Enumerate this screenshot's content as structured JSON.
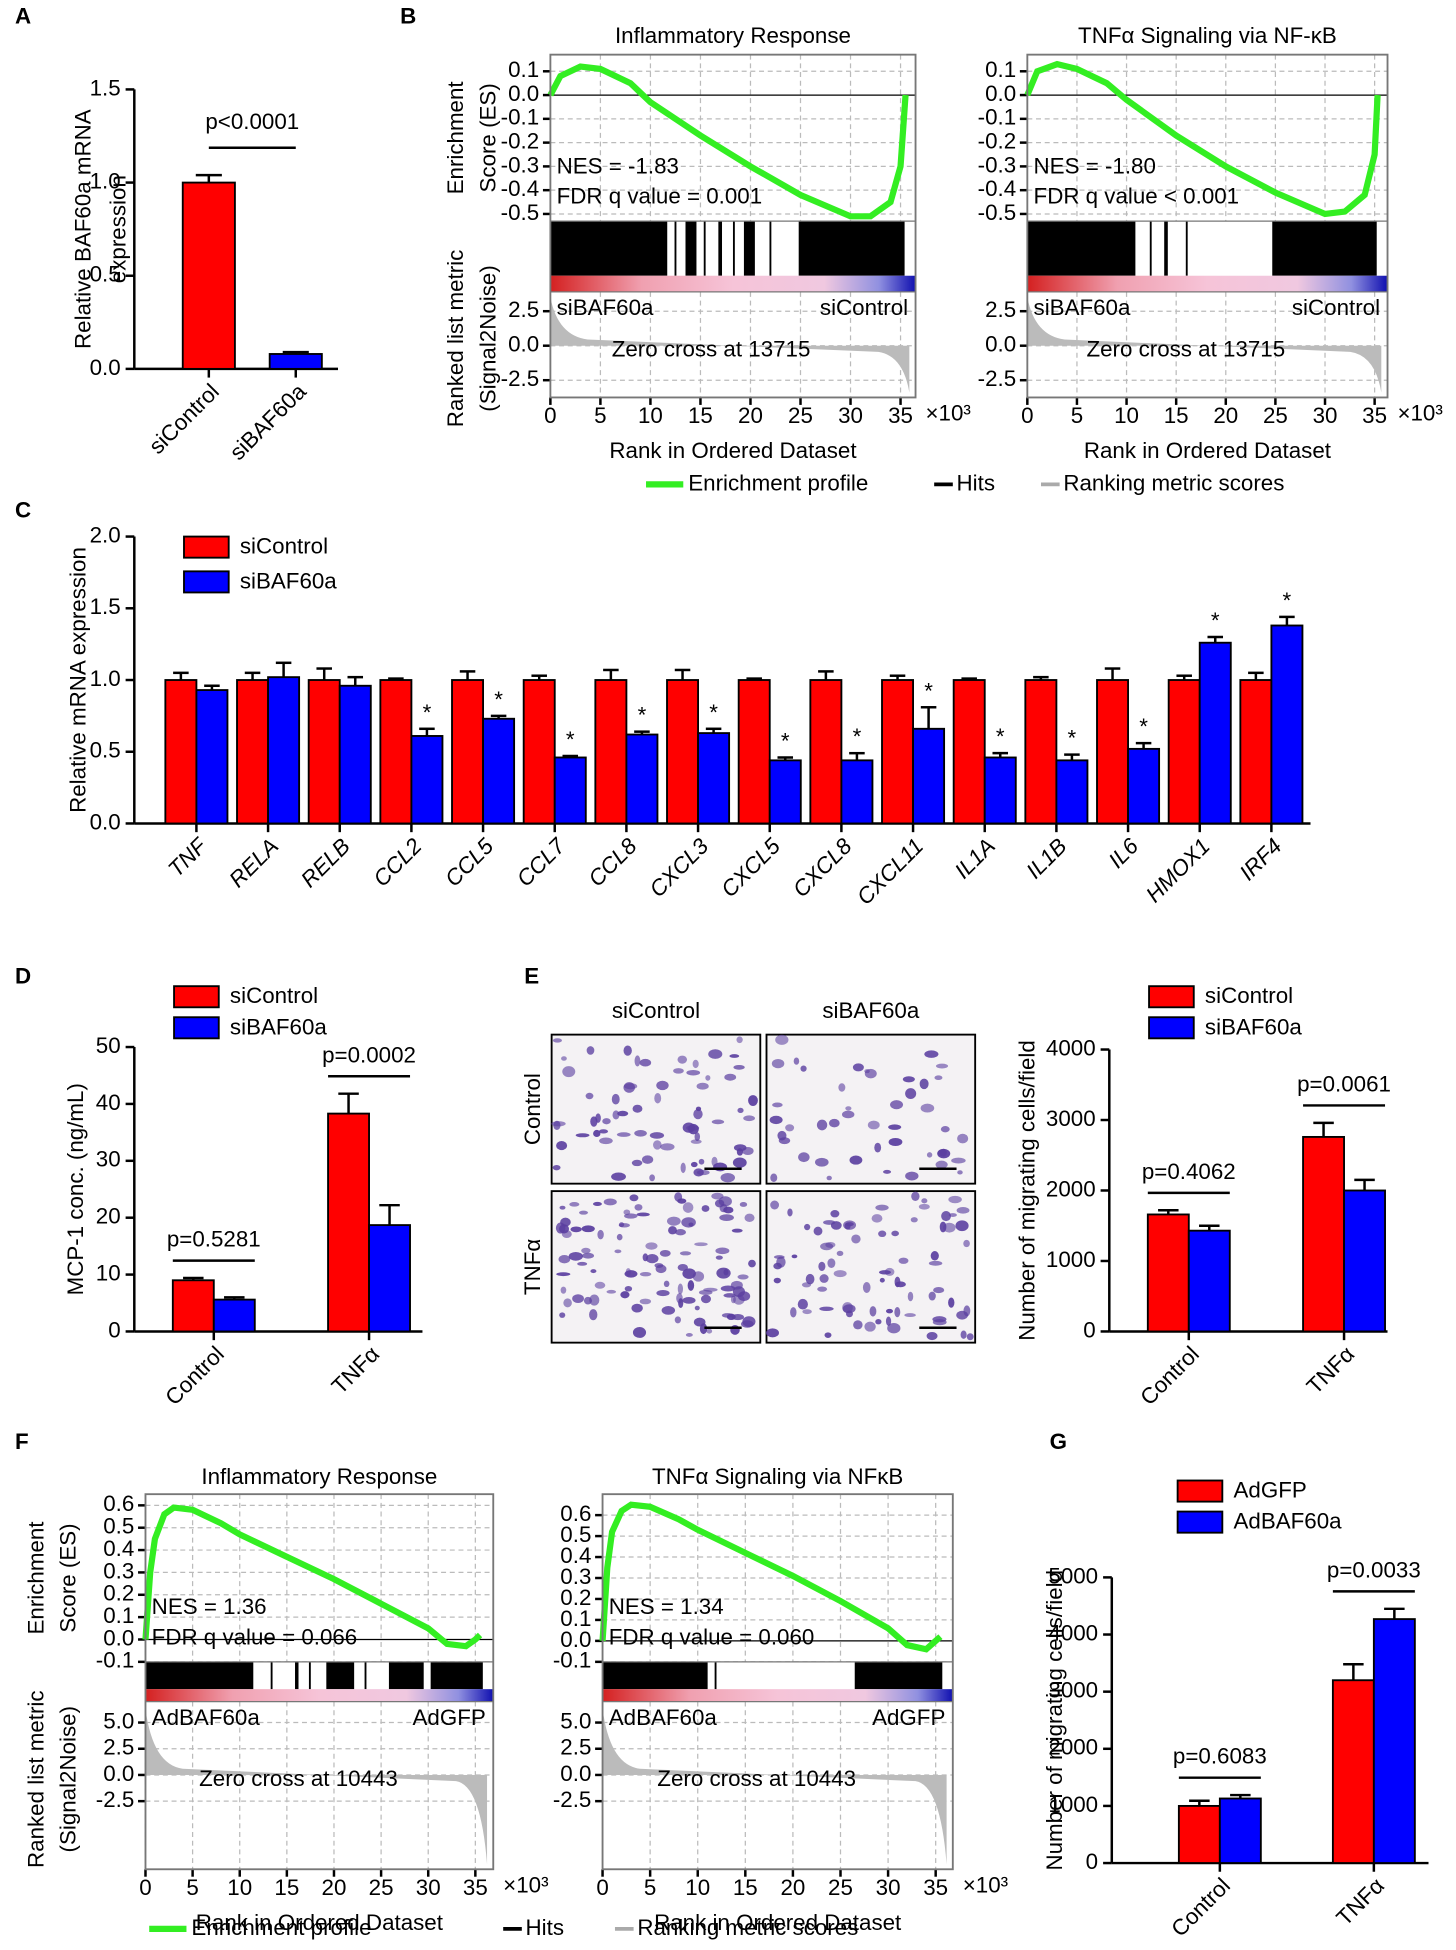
{
  "panels": [
    "A",
    "B",
    "C",
    "D",
    "E",
    "F",
    "G"
  ],
  "micrographs": {
    "columns": [
      "siControl",
      "siBAF60a"
    ],
    "rows": [
      "Control",
      "TNFα"
    ]
  },
  "chart_data": [
    {
      "type": "bar",
      "categories": [
        "siControl",
        "siBAF60a"
      ],
      "values": [
        1.0,
        0.08
      ],
      "errors": [
        0.04,
        0.01
      ],
      "colors": [
        "#ff0000",
        "#0000ff"
      ],
      "ylim": [
        0,
        1.5
      ],
      "yticks": [
        {
          "value": 0,
          "label": "0.0"
        },
        0.5,
        {
          "value": 1,
          "label": "1.0"
        },
        1.5
      ],
      "ylabel": [
        "Relative BAF60a mRNA",
        "expression"
      ],
      "annotations": [
        "p<0.0001"
      ]
    },
    {
      "type": "line",
      "title": "Inflammatory Response",
      "color": "#33ee22",
      "x": [
        0,
        1,
        3,
        5,
        8,
        10,
        15,
        20,
        25,
        30,
        32,
        34,
        35,
        35.5
      ],
      "values": [
        0,
        0.08,
        0.12,
        0.11,
        0.05,
        -0.03,
        -0.17,
        -0.3,
        -0.42,
        -0.51,
        -0.51,
        -0.45,
        -0.3,
        0.0
      ],
      "xlim": [
        0,
        36.5
      ],
      "xticks": [
        0,
        5,
        10,
        15,
        20,
        25,
        30,
        35
      ],
      "x_unit": "×10³",
      "ylim": [
        -0.53,
        0.17
      ],
      "yticks": [
        0.1,
        {
          "value": 0,
          "label": "0.0"
        },
        -0.1,
        -0.2,
        -0.3,
        -0.4,
        -0.5
      ],
      "rank_ylim": [
        -3.75,
        3.9
      ],
      "rank_yticks": [
        2.5,
        {
          "value": 0,
          "label": "0.0"
        },
        -2.5
      ],
      "nes": "NES = -1.83",
      "fdr": "FDR q value = 0.001",
      "left_label": "siBAF60a",
      "right_label": "siControl",
      "zero_cross": "Zero cross at 13715",
      "xlabel": "Rank in Ordered Dataset",
      "ylabel": [
        "Enrichment",
        "Score (ES)"
      ],
      "rank_ylabel": [
        "Ranked list metric",
        "(Signal2Noise)"
      ],
      "legend_items": [
        "Enrichment profile",
        "Hits",
        "Ranking metric scores"
      ]
    },
    {
      "type": "line",
      "title": "TNFα Signaling via NF-κB",
      "color": "#33ee22",
      "x": [
        0,
        1,
        3,
        5,
        8,
        10,
        15,
        20,
        25,
        30,
        32,
        34,
        35,
        35.3
      ],
      "values": [
        0,
        0.1,
        0.13,
        0.11,
        0.05,
        -0.02,
        -0.17,
        -0.3,
        -0.41,
        -0.5,
        -0.49,
        -0.42,
        -0.25,
        0.0
      ],
      "xlim": [
        0,
        36.3
      ],
      "xticks": [
        0,
        5,
        10,
        15,
        20,
        25,
        30,
        35
      ],
      "x_unit": "×10³",
      "ylim": [
        -0.53,
        0.17
      ],
      "yticks": [
        0.1,
        {
          "value": 0,
          "label": "0.0"
        },
        -0.1,
        -0.2,
        -0.3,
        -0.4,
        -0.5
      ],
      "rank_ylim": [
        -3.75,
        3.9
      ],
      "rank_yticks": [
        2.5,
        {
          "value": 0,
          "label": "0.0"
        },
        -2.5
      ],
      "nes": "NES = -1.80",
      "fdr": "FDR q value < 0.001",
      "left_label": "siBAF60a",
      "right_label": "siControl",
      "zero_cross": "Zero cross at 13715",
      "xlabel": "Rank in Ordered Dataset"
    },
    {
      "type": "bar",
      "categories": [
        "TNF",
        "RELA",
        "RELB",
        "CCL2",
        "CCL5",
        "CCL7",
        "CCL8",
        "CXCL3",
        "CXCL5",
        "CXCL8",
        "CXCL11",
        "IL1A",
        "IL1B",
        "IL6",
        "HMOX1",
        "IRF4"
      ],
      "series": [
        {
          "name": "siControl",
          "color": "#ff0000",
          "values": [
            1.0,
            1.0,
            1.0,
            1.0,
            1.0,
            1.0,
            1.0,
            1.0,
            1.0,
            1.0,
            1.0,
            1.0,
            1.0,
            1.0,
            1.0,
            1.0
          ],
          "errors": [
            0.05,
            0.05,
            0.08,
            0.01,
            0.06,
            0.03,
            0.07,
            0.07,
            0.01,
            0.06,
            0.03,
            0.01,
            0.02,
            0.08,
            0.03,
            0.05
          ]
        },
        {
          "name": "siBAF60a",
          "color": "#0000ff",
          "values": [
            0.93,
            1.02,
            0.96,
            0.61,
            0.73,
            0.46,
            0.62,
            0.63,
            0.44,
            0.44,
            0.66,
            0.46,
            0.44,
            0.52,
            1.26,
            1.38
          ],
          "errors": [
            0.03,
            0.1,
            0.06,
            0.05,
            0.02,
            0.01,
            0.02,
            0.03,
            0.02,
            0.05,
            0.15,
            0.03,
            0.04,
            0.04,
            0.04,
            0.06
          ],
          "markers": [
            null,
            null,
            null,
            "*",
            "*",
            "*",
            "*",
            "*",
            "*",
            "*",
            "*",
            "*",
            "*",
            "*",
            "*",
            "*"
          ]
        }
      ],
      "ylim": [
        0,
        2
      ],
      "yticks": [
        {
          "value": 0,
          "label": "0.0"
        },
        0.5,
        {
          "value": 1,
          "label": "1.0"
        },
        1.5,
        {
          "value": 2,
          "label": "2.0"
        }
      ],
      "ylabel": [
        "Relative mRNA expression"
      ]
    },
    {
      "type": "bar",
      "categories": [
        "Control",
        "TNFα"
      ],
      "series": [
        {
          "name": "siControl",
          "color": "#ff0000",
          "values": [
            9.0,
            38.3
          ],
          "errors": [
            0.4,
            3.5
          ]
        },
        {
          "name": "siBAF60a",
          "color": "#0000ff",
          "values": [
            5.6,
            18.7
          ],
          "errors": [
            0.4,
            3.5
          ]
        }
      ],
      "ylim": [
        0,
        50
      ],
      "yticks": [
        0,
        10,
        20,
        30,
        40,
        50
      ],
      "ylabel": [
        "MCP-1 conc. (ng/mL)"
      ],
      "annotations": [
        "p=0.5281",
        "p=0.0002"
      ]
    },
    {
      "type": "bar",
      "categories": [
        "Control",
        "TNFα"
      ],
      "series": [
        {
          "name": "siControl",
          "color": "#ff0000",
          "values": [
            1660,
            2760
          ],
          "errors": [
            60,
            200
          ]
        },
        {
          "name": "siBAF60a",
          "color": "#0000ff",
          "values": [
            1430,
            2000
          ],
          "errors": [
            70,
            150
          ]
        }
      ],
      "ylim": [
        0,
        4000
      ],
      "yticks": [
        0,
        1000,
        2000,
        3000,
        4000
      ],
      "ylabel": [
        "Number of migrating cells/field"
      ],
      "annotations": [
        "p=0.4062",
        "p=0.0061"
      ]
    },
    {
      "type": "line",
      "title": "Inflammatory Response",
      "color": "#33ee22",
      "x": [
        0,
        0.5,
        1,
        2,
        3,
        5,
        8,
        10,
        15,
        20,
        25,
        30,
        32,
        34,
        35,
        35.5
      ],
      "values": [
        0,
        0.3,
        0.45,
        0.56,
        0.59,
        0.58,
        0.52,
        0.47,
        0.37,
        0.27,
        0.16,
        0.05,
        -0.02,
        -0.03,
        0.0,
        0.02
      ],
      "xlim": [
        0,
        36.9
      ],
      "xticks": [
        0,
        5,
        10,
        15,
        20,
        25,
        30,
        35
      ],
      "x_unit": "×10³",
      "ylim": [
        -0.1,
        0.65
      ],
      "yticks": [
        0.6,
        0.5,
        0.4,
        0.3,
        0.2,
        0.1,
        {
          "value": 0,
          "label": "0.0"
        },
        -0.1
      ],
      "rank_ylim": [
        -9,
        7
      ],
      "rank_yticks": [
        {
          "value": 5,
          "label": "5.0"
        },
        2.5,
        {
          "value": 0,
          "label": "0.0"
        },
        -2.5
      ],
      "nes": "NES = 1.36",
      "fdr": "FDR q value = 0.066",
      "left_label": "AdBAF60a",
      "right_label": "AdGFP",
      "zero_cross": "Zero cross at 10443",
      "xlabel": "Rank in Ordered Dataset",
      "ylabel": [
        "Enrichment",
        "Score (ES)"
      ],
      "rank_ylabel": [
        "Ranked list metric",
        "(Signal2Noise)"
      ],
      "legend_items": [
        "Enrichment profile",
        "Hits",
        "Ranking metric scores"
      ]
    },
    {
      "type": "line",
      "title": "TNFα Signaling via NFκB",
      "color": "#33ee22",
      "x": [
        0,
        0.5,
        1,
        2,
        3,
        5,
        8,
        10,
        15,
        20,
        25,
        30,
        32,
        34,
        35,
        35.5
      ],
      "values": [
        0,
        0.35,
        0.52,
        0.62,
        0.65,
        0.64,
        0.58,
        0.53,
        0.42,
        0.31,
        0.19,
        0.06,
        -0.02,
        -0.04,
        0.0,
        0.02
      ],
      "xlim": [
        0,
        36.8
      ],
      "xticks": [
        0,
        5,
        10,
        15,
        20,
        25,
        30,
        35
      ],
      "x_unit": "×10³",
      "ylim": [
        -0.1,
        0.7
      ],
      "yticks": [
        0.6,
        0.5,
        0.4,
        0.3,
        0.2,
        0.1,
        {
          "value": 0,
          "label": "0.0"
        },
        -0.1
      ],
      "rank_ylim": [
        -9,
        7
      ],
      "rank_yticks": [
        {
          "value": 5,
          "label": "5.0"
        },
        2.5,
        {
          "value": 0,
          "label": "0.0"
        },
        -2.5
      ],
      "nes": "NES = 1.34",
      "fdr": "FDR q value = 0.060",
      "left_label": "AdBAF60a",
      "right_label": "AdGFP",
      "zero_cross": "Zero cross at 10443",
      "xlabel": "Rank in Ordered Dataset"
    },
    {
      "type": "bar",
      "categories": [
        "Control",
        "TNFα"
      ],
      "series": [
        {
          "name": "AdGFP",
          "color": "#ff0000",
          "values": [
            1000,
            3200
          ],
          "errors": [
            90,
            280
          ]
        },
        {
          "name": "AdBAF60a",
          "color": "#0000ff",
          "values": [
            1130,
            4270
          ],
          "errors": [
            60,
            180
          ]
        }
      ],
      "ylim": [
        0,
        5000
      ],
      "yticks": [
        0,
        1000,
        2000,
        3000,
        4000,
        5000
      ],
      "ylabel": [
        "Number of migrating cells/field"
      ],
      "annotations": [
        "p=0.6083",
        "p=0.0033"
      ]
    }
  ]
}
